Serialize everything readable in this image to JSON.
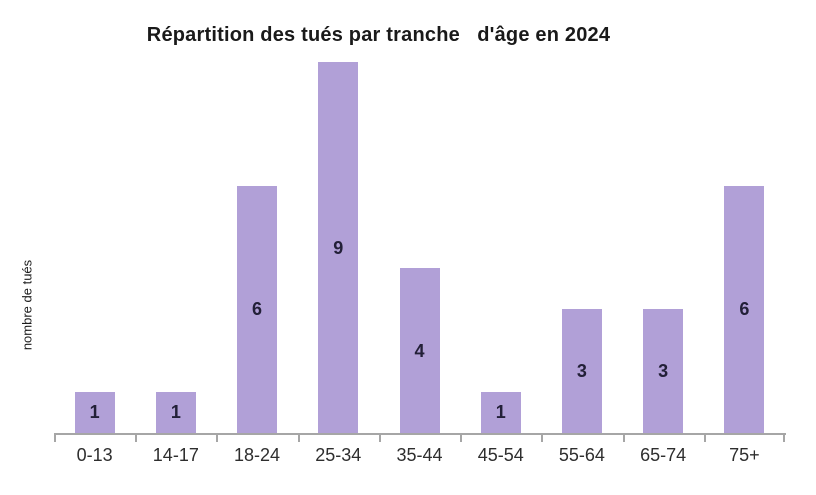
{
  "chart_data": {
    "type": "bar",
    "title": "Répartition des tués par tranche   d'âge en 2024",
    "ylabel": "nombre de tués",
    "xlabel": "",
    "categories": [
      "0-13",
      "14-17",
      "18-24",
      "25-34",
      "35-44",
      "45-54",
      "55-64",
      "65-74",
      "75+"
    ],
    "values": [
      1,
      1,
      6,
      9,
      4,
      1,
      3,
      3,
      6
    ],
    "ylim": [
      0,
      9
    ],
    "grid": false,
    "legend": "none",
    "value_label_position": "centered-inside-bars",
    "bar_color": "#b1a0d7",
    "value_label_color": "#232038",
    "axis_color": "#a6a6a6",
    "title_color": "#1a1a1a",
    "tick_label_color": "#2e2e2e"
  }
}
